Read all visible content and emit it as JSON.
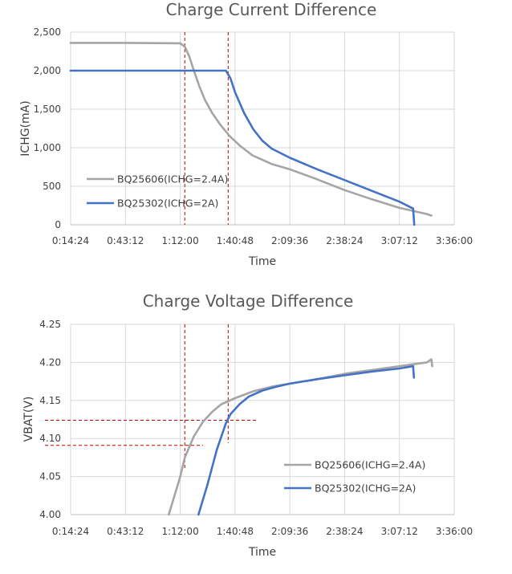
{
  "chart_data": [
    {
      "type": "line",
      "title": "Charge Current Difference",
      "xlabel": "Time",
      "ylabel": "ICHG(mA)",
      "x_ticks": [
        "0:14:24",
        "0:43:12",
        "1:12:00",
        "1:40:48",
        "2:09:36",
        "2:38:24",
        "3:07:12",
        "3:36:00"
      ],
      "xlim": [
        "0:14:24",
        "3:36:00"
      ],
      "ylim": [
        0,
        2500
      ],
      "y_ticks": [
        "0",
        "500",
        "1,000",
        "1,500",
        "2,000",
        "2,500"
      ],
      "y_tick_values": [
        0,
        500,
        1000,
        1500,
        2000,
        2500
      ],
      "grid": true,
      "legend_position": "bottom-left",
      "series": [
        {
          "name": "BQ25606(ICHG=2.4A)",
          "color": "#a5a5a5",
          "x": [
            "0:14:24",
            "0:43:12",
            "1:12:00",
            "1:14:24",
            "1:16:48",
            "1:19:12",
            "1:22:00",
            "1:25:00",
            "1:28:48",
            "1:33:00",
            "1:38:00",
            "1:43:12",
            "1:50:00",
            "2:00:00",
            "2:09:36",
            "2:24:00",
            "2:38:24",
            "2:52:48",
            "3:07:12",
            "3:21:36",
            "3:24:00"
          ],
          "y": [
            2360,
            2360,
            2355,
            2310,
            2180,
            2000,
            1800,
            1620,
            1450,
            1300,
            1150,
            1030,
            900,
            790,
            720,
            590,
            450,
            330,
            220,
            140,
            120
          ]
        },
        {
          "name": "BQ25302(ICHG=2A)",
          "color": "#4472c4",
          "x": [
            "0:14:24",
            "0:43:12",
            "1:12:00",
            "1:26:24",
            "1:33:36",
            "1:36:00",
            "1:38:24",
            "1:40:48",
            "1:45:36",
            "1:50:24",
            "1:55:12",
            "2:00:00",
            "2:09:36",
            "2:24:00",
            "2:38:24",
            "2:52:48",
            "3:07:12",
            "3:14:24",
            "3:15:00"
          ],
          "y": [
            2000,
            2000,
            2000,
            2000,
            2000,
            2000,
            1900,
            1720,
            1450,
            1240,
            1090,
            990,
            870,
            720,
            580,
            440,
            300,
            210,
            0
          ]
        }
      ],
      "reference_lines": [
        {
          "axis": "x",
          "value": "1:14:24",
          "color": "#c00000",
          "style": "dashed"
        },
        {
          "axis": "x",
          "value": "1:37:12",
          "color": "#c00000",
          "style": "dashed"
        }
      ]
    },
    {
      "type": "line",
      "title": "Charge Voltage Difference",
      "xlabel": "Time",
      "ylabel": "VBAT(V)",
      "x_ticks": [
        "0:14:24",
        "0:43:12",
        "1:12:00",
        "1:40:48",
        "2:09:36",
        "2:38:24",
        "3:07:12",
        "3:36:00"
      ],
      "xlim": [
        "0:14:24",
        "3:36:00"
      ],
      "ylim": [
        4.0,
        4.25
      ],
      "y_ticks": [
        "4.00",
        "4.05",
        "4.10",
        "4.15",
        "4.20",
        "4.25"
      ],
      "y_tick_values": [
        4.0,
        4.05,
        4.1,
        4.15,
        4.2,
        4.25
      ],
      "grid": true,
      "legend_position": "bottom-right",
      "series": [
        {
          "name": "BQ25606(ICHG=2.4A)",
          "color": "#a5a5a5",
          "x": [
            "1:06:00",
            "1:09:00",
            "1:12:00",
            "1:14:24",
            "1:19:12",
            "1:24:00",
            "1:28:48",
            "1:33:36",
            "1:40:48",
            "1:50:24",
            "2:00:00",
            "2:09:36",
            "2:24:00",
            "2:38:24",
            "2:52:48",
            "3:07:12",
            "3:21:36",
            "3:24:00",
            "3:24:30"
          ],
          "y": [
            4.0,
            4.025,
            4.05,
            4.075,
            4.103,
            4.122,
            4.135,
            4.145,
            4.153,
            4.162,
            4.168,
            4.172,
            4.178,
            4.185,
            4.19,
            4.195,
            4.2,
            4.204,
            4.195
          ]
        },
        {
          "name": "BQ25302(ICHG=2A)",
          "color": "#4472c4",
          "x": [
            "1:21:36",
            "1:26:24",
            "1:31:12",
            "1:36:00",
            "1:38:24",
            "1:43:12",
            "1:48:00",
            "1:55:12",
            "2:02:24",
            "2:09:36",
            "2:24:00",
            "2:38:24",
            "2:52:48",
            "3:07:12",
            "3:14:24",
            "3:14:50"
          ],
          "y": [
            4.0,
            4.04,
            4.085,
            4.12,
            4.132,
            4.145,
            4.155,
            4.163,
            4.168,
            4.172,
            4.178,
            4.183,
            4.188,
            4.192,
            4.195,
            4.18
          ]
        }
      ],
      "reference_lines": [
        {
          "axis": "x",
          "value": "1:14:24",
          "color": "#c00000",
          "style": "dashed"
        },
        {
          "axis": "x",
          "value": "1:37:12",
          "color": "#c00000",
          "style": "dashed"
        },
        {
          "axis": "y",
          "value": 4.124,
          "color": "#c00000",
          "style": "dashed",
          "x_extent": [
            "0:00:00",
            "1:52:00"
          ]
        },
        {
          "axis": "y",
          "value": 4.091,
          "color": "#c00000",
          "style": "dashed",
          "x_extent": [
            "0:00:00",
            "1:24:00"
          ]
        }
      ]
    }
  ]
}
